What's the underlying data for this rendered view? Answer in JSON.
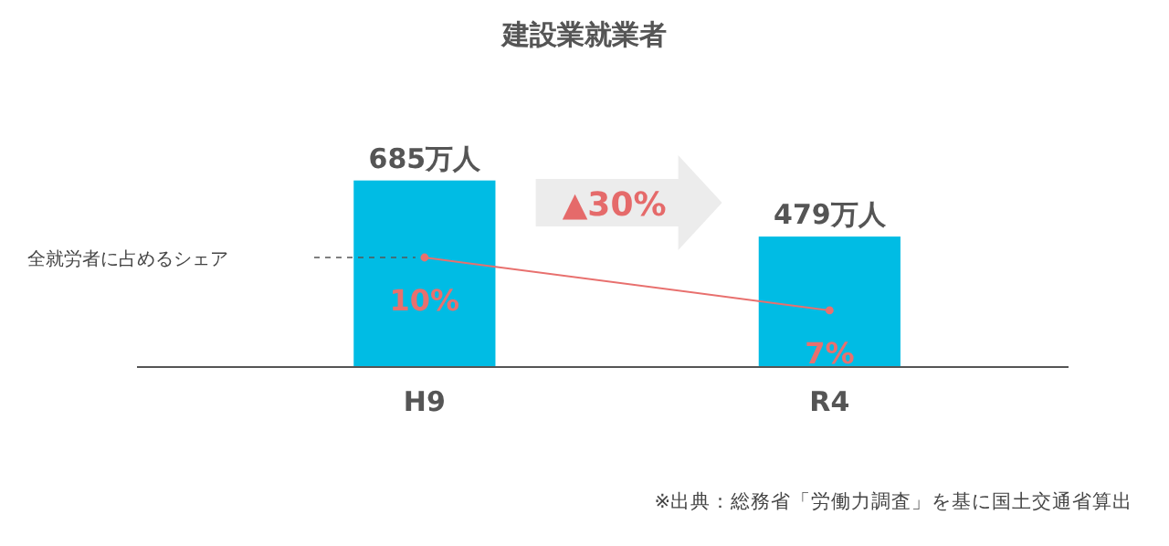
{
  "chart_data": {
    "type": "bar",
    "title": "建設業就業者",
    "categories": [
      "H9",
      "R4"
    ],
    "series": [
      {
        "color": "#00bce4",
        "values": [
          685,
          479
        ],
        "value_labels": [
          "685万人",
          "479万人"
        ]
      },
      {
        "type": "line",
        "axis": "y2",
        "color": "#e8706e",
        "values": [
          10,
          7
        ],
        "value_labels": [
          "10%",
          "7%"
        ]
      }
    ],
    "tick_labels": "x",
    "marker": "circle",
    "line_style": "solid",
    "annotations": [
      "▲30%",
      "全就労者に占めるシェア",
      "※出典：総務省「労働力調査」を基に国土交通省算出"
    ]
  }
}
